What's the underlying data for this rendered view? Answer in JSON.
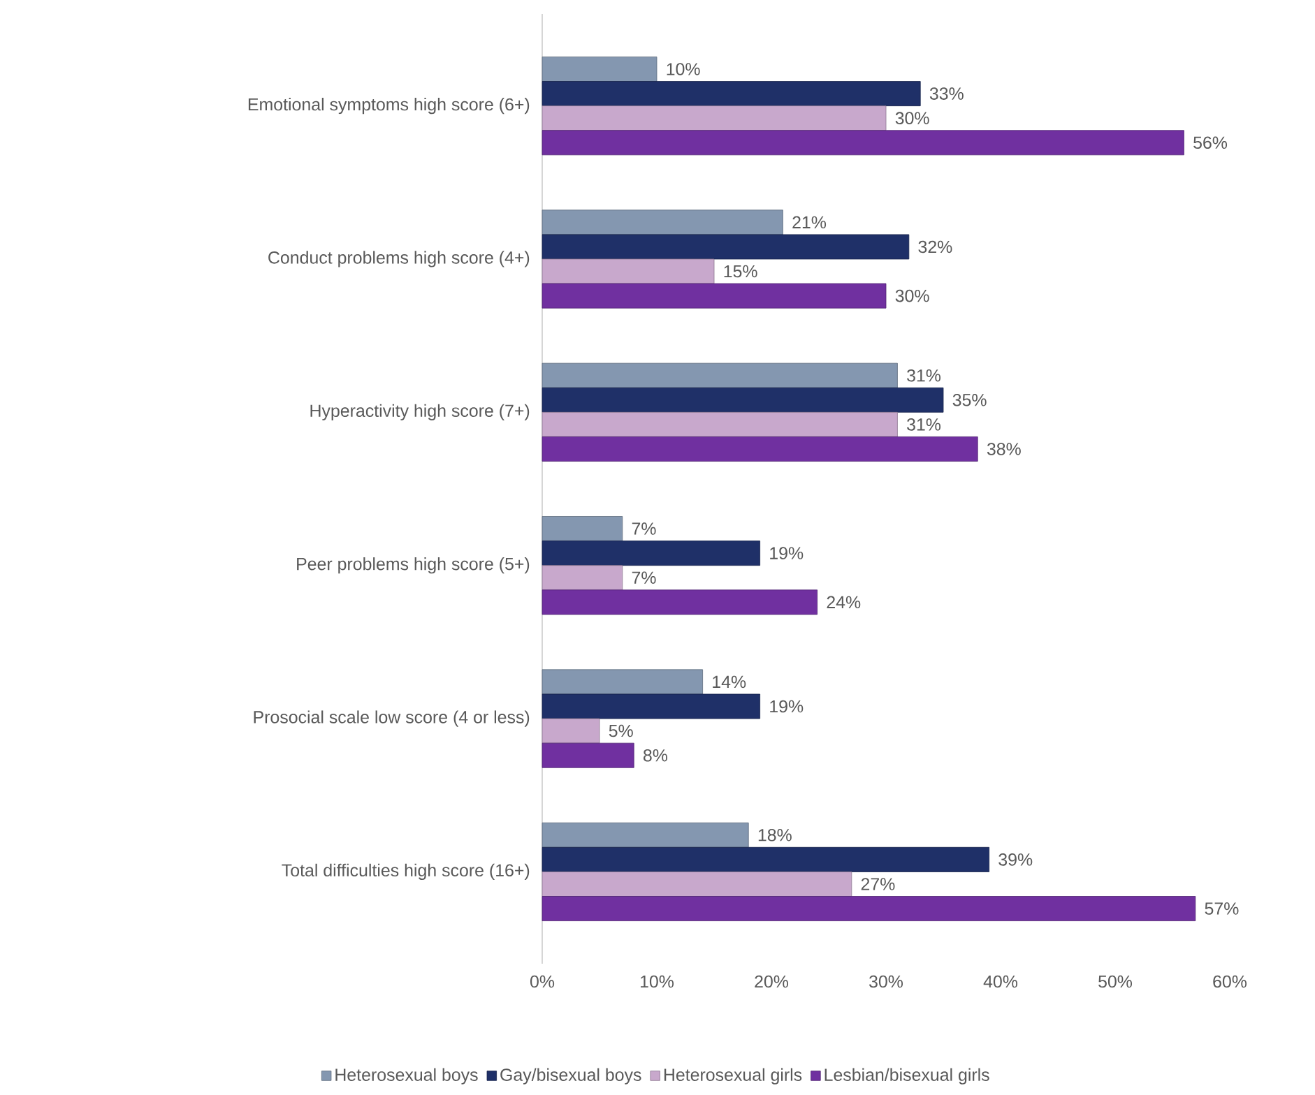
{
  "chart_data": {
    "type": "bar",
    "orientation": "horizontal",
    "categories": [
      "Emotional symptoms high score (6+)",
      "Conduct problems high score (4+)",
      "Hyperactivity high score (7+)",
      "Peer problems high score (5+)",
      "Prosocial scale low score (4 or less)",
      "Total difficulties high score (16+)"
    ],
    "series": [
      {
        "name": "Heterosexual boys",
        "color": "#8497b0",
        "values": [
          10,
          21,
          31,
          7,
          14,
          18
        ],
        "value_labels": [
          "10%",
          "21%",
          "31%",
          "7%",
          "14%",
          "18%"
        ]
      },
      {
        "name": "Gay/bisexual boys",
        "color": "#1f3068",
        "values": [
          33,
          32,
          35,
          19,
          19,
          39
        ],
        "value_labels": [
          "33%",
          "32%",
          "35%",
          "19%",
          "19%",
          "39%"
        ]
      },
      {
        "name": "Heterosexual girls",
        "color": "#c8a8cc",
        "values": [
          30,
          15,
          31,
          7,
          5,
          27
        ],
        "value_labels": [
          "30%",
          "15%",
          "31%",
          "7%",
          "5%",
          "27%"
        ]
      },
      {
        "name": "Lesbian/bisexual girls",
        "color": "#7030a0",
        "values": [
          56,
          30,
          38,
          24,
          8,
          57
        ],
        "value_labels": [
          "56%",
          "30%",
          "38%",
          "24%",
          "8%",
          "57%"
        ]
      }
    ],
    "xlim": [
      0,
      60
    ],
    "xticks": [
      {
        "value": 0,
        "label": "0%"
      },
      {
        "value": 10,
        "label": "10%"
      },
      {
        "value": 20,
        "label": "20%"
      },
      {
        "value": 30,
        "label": "30%"
      },
      {
        "value": 40,
        "label": "40%"
      },
      {
        "value": 50,
        "label": "50%"
      },
      {
        "value": 60,
        "label": "60%"
      }
    ],
    "legend": "bottom"
  }
}
